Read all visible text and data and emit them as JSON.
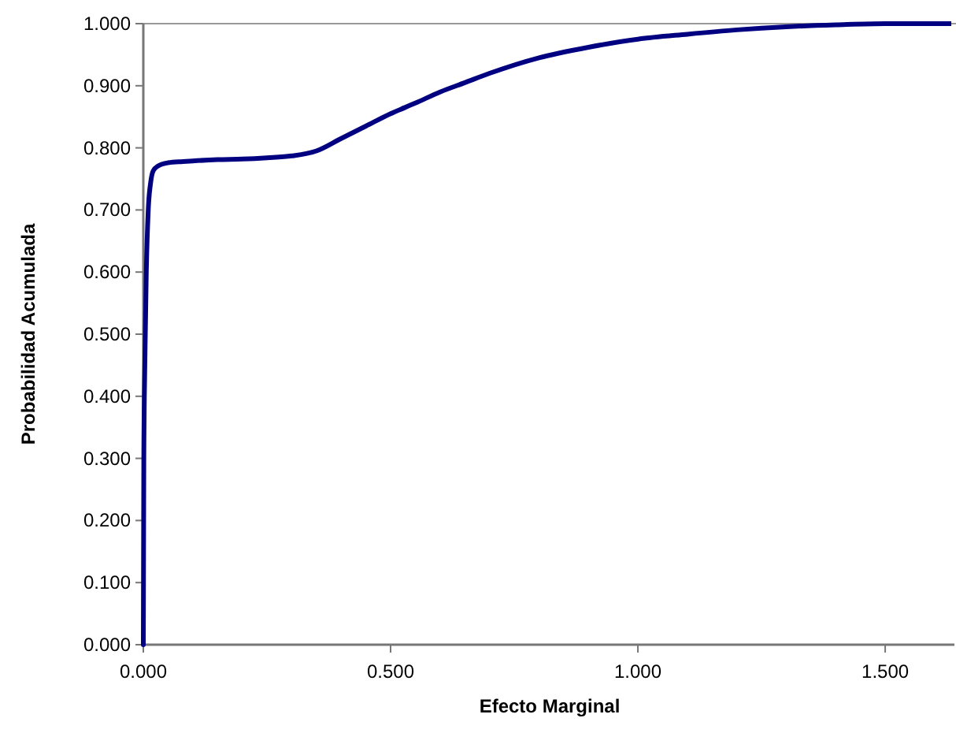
{
  "chart_data": {
    "type": "line",
    "xlabel": "Efecto Marginal",
    "ylabel": "Probabilidad Acumulada",
    "xlim": [
      0,
      1.64
    ],
    "ylim": [
      0,
      1
    ],
    "xticks": [
      {
        "value": 0,
        "label": "0.000"
      },
      {
        "value": 0.5,
        "label": "0.500"
      },
      {
        "value": 1,
        "label": "1.000"
      },
      {
        "value": 1.5,
        "label": "1.500"
      }
    ],
    "yticks": [
      {
        "value": 0,
        "label": "0.000"
      },
      {
        "value": 0.1,
        "label": "0.100"
      },
      {
        "value": 0.2,
        "label": "0.200"
      },
      {
        "value": 0.3,
        "label": "0.300"
      },
      {
        "value": 0.4,
        "label": "0.400"
      },
      {
        "value": 0.5,
        "label": "0.500"
      },
      {
        "value": 0.6,
        "label": "0.600"
      },
      {
        "value": 0.7,
        "label": "0.700"
      },
      {
        "value": 0.8,
        "label": "0.800"
      },
      {
        "value": 0.9,
        "label": "0.900"
      },
      {
        "value": 1,
        "label": "1.000"
      }
    ],
    "grid": false,
    "marker": "none",
    "line_style": "solid",
    "series": [
      {
        "color": "#000080",
        "x": [
          0,
          0.001,
          0.003,
          0.006,
          0.01,
          0.015,
          0.02,
          0.03,
          0.05,
          0.08,
          0.1,
          0.15,
          0.2,
          0.25,
          0.3,
          0.35,
          0.4,
          0.45,
          0.5,
          0.55,
          0.6,
          0.65,
          0.7,
          0.8,
          0.9,
          1.0,
          1.1,
          1.2,
          1.3,
          1.4,
          1.5,
          1.64
        ],
        "values": [
          0,
          0.3,
          0.45,
          0.6,
          0.7,
          0.745,
          0.763,
          0.771,
          0.776,
          0.778,
          0.779,
          0.781,
          0.782,
          0.784,
          0.787,
          0.795,
          0.815,
          0.835,
          0.855,
          0.872,
          0.89,
          0.905,
          0.92,
          0.945,
          0.962,
          0.975,
          0.983,
          0.99,
          0.995,
          0.998,
          1.0,
          1.0
        ]
      }
    ]
  }
}
